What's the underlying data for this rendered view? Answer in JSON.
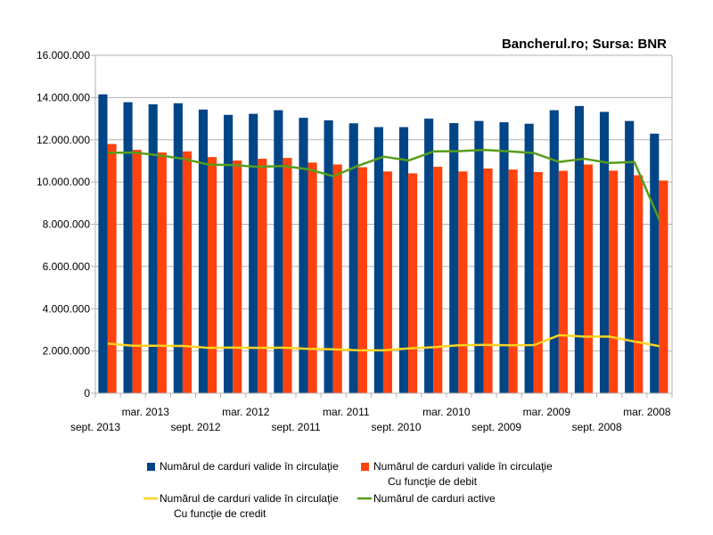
{
  "chart_data": {
    "type": "bar",
    "title": "Bancherul.ro; Sursa: BNR",
    "xlabel": "",
    "ylabel": "",
    "ylim": [
      0,
      16000000
    ],
    "y_ticks": [
      "0",
      "2.000.000",
      "4.000.000",
      "6.000.000",
      "8.000.000",
      "10.000.000",
      "12.000.000",
      "14.000.000",
      "16.000.000"
    ],
    "grid": true,
    "legend_position": "bottom",
    "x_tick_labels_upper": [
      "mar. 2013",
      "mar. 2012",
      "mar. 2011",
      "mar. 2010",
      "mar. 2009",
      "mar. 2008"
    ],
    "x_tick_labels_lower": [
      "sept. 2013",
      "sept. 2012",
      "sept. 2011",
      "sept. 2010",
      "sept. 2009",
      "sept. 2008"
    ],
    "series": [
      {
        "name": "Numărul de carduri valide în circulaţie",
        "type": "bar",
        "color": "#004586",
        "values": [
          14150000,
          13780000,
          13680000,
          13730000,
          13430000,
          13180000,
          13230000,
          13400000,
          13040000,
          12920000,
          12780000,
          12600000,
          12600000,
          13000000,
          12790000,
          12890000,
          12830000,
          12760000,
          13400000,
          13600000,
          13320000,
          12890000,
          12290000
        ]
      },
      {
        "name": "Numărul de carduri valide în circulaţie\nCu funcţie de debit",
        "type": "bar",
        "color": "#ff420e",
        "values": [
          11800000,
          11520000,
          11400000,
          11450000,
          11180000,
          11020000,
          11100000,
          11140000,
          10920000,
          10830000,
          10700000,
          10500000,
          10410000,
          10720000,
          10500000,
          10640000,
          10590000,
          10470000,
          10530000,
          10830000,
          10540000,
          10320000,
          10070000
        ]
      },
      {
        "name": "Numărul de carduri valide în circulaţie\nCu funcţie de credit",
        "type": "line",
        "color": "#ffd320",
        "values": [
          2350000,
          2250000,
          2250000,
          2240000,
          2150000,
          2160000,
          2150000,
          2160000,
          2100000,
          2080000,
          2030000,
          2030000,
          2120000,
          2180000,
          2270000,
          2290000,
          2270000,
          2280000,
          2750000,
          2680000,
          2680000,
          2450000,
          2230000
        ]
      },
      {
        "name": "Numărul de carduri active",
        "type": "line",
        "color": "#579d1c",
        "values": [
          11380000,
          11400000,
          11270000,
          11100000,
          10830000,
          10800000,
          10720000,
          10760000,
          10600000,
          10270000,
          10780000,
          11200000,
          11020000,
          11450000,
          11460000,
          11520000,
          11450000,
          11370000,
          10950000,
          11100000,
          10900000,
          10950000,
          8200000
        ]
      }
    ]
  }
}
